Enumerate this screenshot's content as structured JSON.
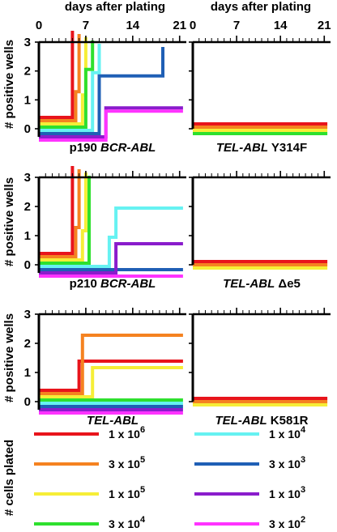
{
  "figure": {
    "top_xlabel": "days after plating",
    "ylabel": "# positive wells",
    "legend_title": "# cells plated"
  },
  "chart_data": [
    {
      "type": "line",
      "step": true,
      "title": "p190 BCR-ABL",
      "title_parts": [
        {
          "text": "p190 ",
          "italic": false
        },
        {
          "text": "BCR-ABL",
          "italic": true
        }
      ],
      "xlim": [
        0,
        22
      ],
      "ylim": [
        0,
        3
      ],
      "x_ticks": [
        0,
        7,
        14,
        21
      ],
      "y_ticks": [
        0,
        1,
        2,
        3
      ],
      "x_tick_labels_shown": true,
      "y_tick_labels_shown": true,
      "series": [
        {
          "name": "1 x 10^6",
          "color": "#e8141b",
          "x": [
            0,
            5,
            5
          ],
          "y": [
            0,
            0,
            3
          ]
        },
        {
          "name": "3 x 10^5",
          "color": "#f58220",
          "x": [
            0,
            5.5,
            5.5,
            6,
            6
          ],
          "y": [
            0,
            0,
            1,
            1,
            3
          ]
        },
        {
          "name": "1 x 10^5",
          "color": "#f6ee37",
          "x": [
            0,
            6.5,
            6.5,
            7,
            7
          ],
          "y": [
            0,
            0,
            1,
            1,
            3
          ]
        },
        {
          "name": "3 x 10^4",
          "color": "#2ee02e",
          "x": [
            0,
            7,
            7,
            8,
            8
          ],
          "y": [
            0,
            0,
            2,
            2,
            3
          ]
        },
        {
          "name": "1 x 10^4",
          "color": "#66f2f2",
          "x": [
            0,
            8,
            8,
            9,
            9
          ],
          "y": [
            0,
            0,
            2,
            2,
            3
          ]
        },
        {
          "name": "3 x 10^3",
          "color": "#1f5fb5",
          "x": [
            0,
            9,
            9,
            18.5,
            18.5
          ],
          "y": [
            0,
            0,
            2,
            2,
            3
          ]
        },
        {
          "name": "1 x 10^3",
          "color": "#8a1ccc",
          "x": [
            0,
            10,
            10,
            21.5
          ],
          "y": [
            0,
            0,
            1,
            1
          ]
        },
        {
          "name": "3 x 10^2",
          "color": "#ff33ff",
          "x": [
            0,
            10,
            10,
            21.5
          ],
          "y": [
            0,
            0,
            1,
            1
          ]
        }
      ]
    },
    {
      "type": "line",
      "step": true,
      "title": "TEL-ABL Y314F",
      "title_parts": [
        {
          "text": "TEL-ABL",
          "italic": true
        },
        {
          "text": " Y314F",
          "italic": false
        }
      ],
      "xlim": [
        0,
        22
      ],
      "ylim": [
        0,
        3
      ],
      "x_ticks": [
        0,
        7,
        14,
        21
      ],
      "y_ticks": [
        0,
        1,
        2,
        3
      ],
      "x_tick_labels_shown": true,
      "y_tick_labels_shown": false,
      "series": [
        {
          "name": "1 x 10^6",
          "color": "#e8141b",
          "x": [
            0,
            21.5
          ],
          "y": [
            0,
            0
          ]
        },
        {
          "name": "3 x 10^5",
          "color": "#f58220",
          "x": [
            0,
            21.5
          ],
          "y": [
            0,
            0
          ]
        },
        {
          "name": "1 x 10^5",
          "color": "#f6ee37",
          "x": [
            0,
            21.5
          ],
          "y": [
            0,
            0
          ]
        },
        {
          "name": "3 x 10^4",
          "color": "#2ee02e",
          "x": [
            0,
            21.5
          ],
          "y": [
            0,
            0
          ]
        }
      ]
    },
    {
      "type": "line",
      "step": true,
      "title": "p210 BCR-ABL",
      "title_parts": [
        {
          "text": "p210 ",
          "italic": false
        },
        {
          "text": "BCR-ABL",
          "italic": true
        }
      ],
      "xlim": [
        0,
        22
      ],
      "ylim": [
        0,
        3
      ],
      "x_ticks": [
        0,
        7,
        14,
        21
      ],
      "y_ticks": [
        0,
        1,
        2,
        3
      ],
      "x_tick_labels_shown": false,
      "y_tick_labels_shown": true,
      "series": [
        {
          "name": "1 x 10^6",
          "color": "#e8141b",
          "x": [
            0,
            5,
            5
          ],
          "y": [
            0,
            0,
            3
          ]
        },
        {
          "name": "3 x 10^5",
          "color": "#f58220",
          "x": [
            0,
            5.5,
            5.5,
            6,
            6
          ],
          "y": [
            0,
            0,
            1,
            1,
            3
          ]
        },
        {
          "name": "1 x 10^5",
          "color": "#f6ee37",
          "x": [
            0,
            6.5,
            6.5,
            7,
            7
          ],
          "y": [
            0,
            0,
            1,
            1,
            3
          ]
        },
        {
          "name": "3 x 10^4",
          "color": "#2ee02e",
          "x": [
            0,
            7.5,
            7.5
          ],
          "y": [
            0,
            0,
            3
          ]
        },
        {
          "name": "1 x 10^4",
          "color": "#66f2f2",
          "x": [
            0,
            10.5,
            10.5,
            11.5,
            11.5,
            21.5
          ],
          "y": [
            0,
            0,
            1,
            1,
            2,
            2
          ]
        },
        {
          "name": "3 x 10^3",
          "color": "#1f5fb5",
          "x": [
            0,
            21.5
          ],
          "y": [
            0,
            0
          ]
        },
        {
          "name": "1 x 10^3",
          "color": "#8a1ccc",
          "x": [
            0,
            11.5,
            11.5,
            21.5
          ],
          "y": [
            0,
            0,
            1,
            1
          ]
        },
        {
          "name": "3 x 10^2",
          "color": "#ff33ff",
          "x": [
            0,
            21.5
          ],
          "y": [
            0,
            0
          ]
        }
      ]
    },
    {
      "type": "line",
      "step": true,
      "title": "TEL-ABL Δe5",
      "title_parts": [
        {
          "text": "TEL-ABL",
          "italic": true
        },
        {
          "text": " Δe5",
          "italic": false
        }
      ],
      "xlim": [
        0,
        22
      ],
      "ylim": [
        0,
        3
      ],
      "x_ticks": [
        0,
        7,
        14,
        21
      ],
      "y_ticks": [
        0,
        1,
        2,
        3
      ],
      "x_tick_labels_shown": false,
      "y_tick_labels_shown": false,
      "series": [
        {
          "name": "1 x 10^6",
          "color": "#e8141b",
          "x": [
            0,
            21.5
          ],
          "y": [
            0,
            0
          ]
        },
        {
          "name": "3 x 10^5",
          "color": "#f58220",
          "x": [
            0,
            21.5
          ],
          "y": [
            0,
            0
          ]
        },
        {
          "name": "1 x 10^5",
          "color": "#f6ee37",
          "x": [
            0,
            21.5
          ],
          "y": [
            0,
            0
          ]
        }
      ]
    },
    {
      "type": "line",
      "step": true,
      "title": "TEL-ABL",
      "title_parts": [
        {
          "text": "TEL-ABL",
          "italic": true
        }
      ],
      "xlim": [
        0,
        22
      ],
      "ylim": [
        0,
        3
      ],
      "x_ticks": [
        0,
        7,
        14,
        21
      ],
      "y_ticks": [
        0,
        1,
        2,
        3
      ],
      "x_tick_labels_shown": false,
      "y_tick_labels_shown": true,
      "series": [
        {
          "name": "1 x 10^6",
          "color": "#e8141b",
          "x": [
            0,
            5,
            5,
            6,
            6,
            21.5
          ],
          "y": [
            0,
            0,
            0,
            0,
            1,
            1
          ]
        },
        {
          "name": "3 x 10^5",
          "color": "#f58220",
          "x": [
            0,
            6.5,
            6.5,
            21.5
          ],
          "y": [
            0,
            0,
            2,
            2
          ]
        },
        {
          "name": "1 x 10^5",
          "color": "#f6ee37",
          "x": [
            0,
            8,
            8,
            21.5
          ],
          "y": [
            0,
            0,
            1,
            1
          ]
        },
        {
          "name": "3 x 10^4",
          "color": "#2ee02e",
          "x": [
            0,
            21.5
          ],
          "y": [
            0,
            0
          ]
        },
        {
          "name": "1 x 10^4",
          "color": "#66f2f2",
          "x": [
            0,
            21.5
          ],
          "y": [
            0,
            0
          ]
        },
        {
          "name": "3 x 10^3",
          "color": "#1f5fb5",
          "x": [
            0,
            21.5
          ],
          "y": [
            0,
            0
          ]
        },
        {
          "name": "1 x 10^3",
          "color": "#8a1ccc",
          "x": [
            0,
            21.5
          ],
          "y": [
            0,
            0
          ]
        },
        {
          "name": "3 x 10^2",
          "color": "#ff33ff",
          "x": [
            0,
            21.5
          ],
          "y": [
            0,
            0
          ]
        }
      ]
    },
    {
      "type": "line",
      "step": true,
      "title": "TEL-ABL K581R",
      "title_parts": [
        {
          "text": "TEL-ABL",
          "italic": true
        },
        {
          "text": " K581R",
          "italic": false
        }
      ],
      "xlim": [
        0,
        22
      ],
      "ylim": [
        0,
        3
      ],
      "x_ticks": [
        0,
        7,
        14,
        21
      ],
      "y_ticks": [
        0,
        1,
        2,
        3
      ],
      "x_tick_labels_shown": false,
      "y_tick_labels_shown": false,
      "series": [
        {
          "name": "1 x 10^6",
          "color": "#e8141b",
          "x": [
            0,
            21.5
          ],
          "y": [
            0,
            0
          ]
        },
        {
          "name": "3 x 10^5",
          "color": "#f58220",
          "x": [
            0,
            21.5
          ],
          "y": [
            0,
            0
          ]
        },
        {
          "name": "1 x 10^5",
          "color": "#f6ee37",
          "x": [
            0,
            21.5
          ],
          "y": [
            0,
            0
          ]
        }
      ]
    }
  ],
  "legend": {
    "items": [
      {
        "mant": "1 x 10",
        "exp": "6",
        "color": "#e8141b"
      },
      {
        "mant": "3 x 10",
        "exp": "5",
        "color": "#f58220"
      },
      {
        "mant": "1 x 10",
        "exp": "5",
        "color": "#f6ee37"
      },
      {
        "mant": "3 x 10",
        "exp": "4",
        "color": "#2ee02e"
      },
      {
        "mant": "1 x 10",
        "exp": "4",
        "color": "#66f2f2"
      },
      {
        "mant": "3 x 10",
        "exp": "3",
        "color": "#1f5fb5"
      },
      {
        "mant": "1 x 10",
        "exp": "3",
        "color": "#8a1ccc"
      },
      {
        "mant": "3 x 10",
        "exp": "2",
        "color": "#ff33ff"
      }
    ]
  }
}
